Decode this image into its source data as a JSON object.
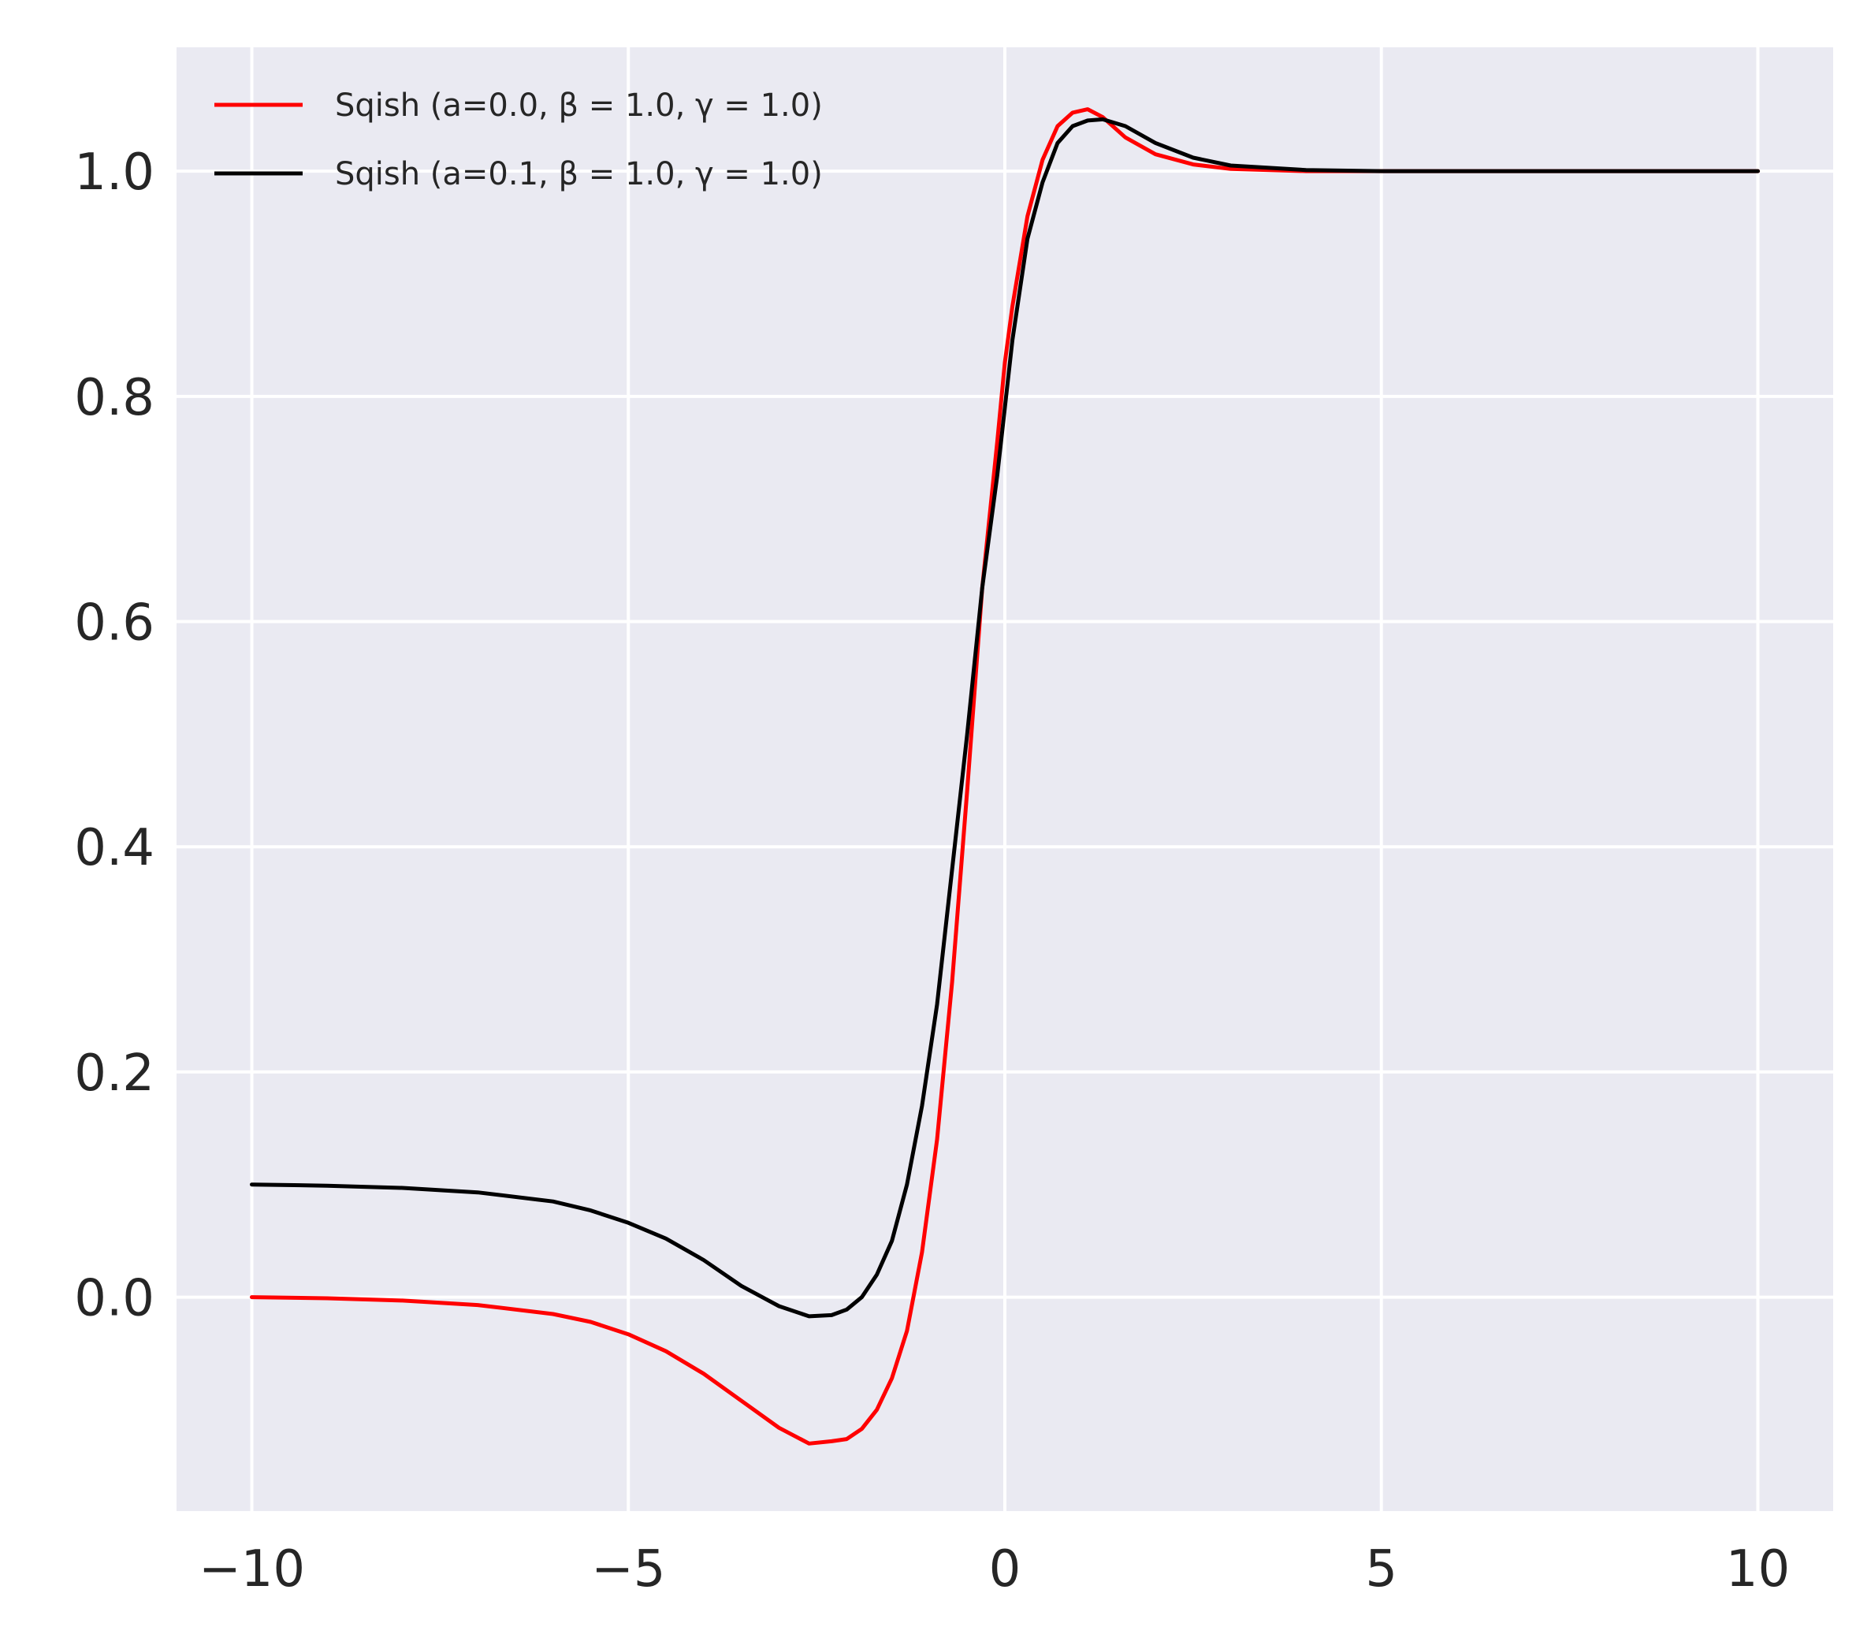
{
  "chart_data": {
    "type": "line",
    "title": "",
    "xlabel": "",
    "ylabel": "",
    "xlim": [
      -11,
      11
    ],
    "ylim": [
      -0.19,
      1.11
    ],
    "grid": true,
    "legend_position": "top-left",
    "x_ticks": [
      -10,
      -5,
      0,
      5,
      10
    ],
    "x_tick_labels": [
      "−10",
      "−5",
      "0",
      "5",
      "10"
    ],
    "y_ticks": [
      0.0,
      0.2,
      0.4,
      0.6,
      0.8,
      1.0
    ],
    "y_tick_labels": [
      "0.0",
      "0.2",
      "0.4",
      "0.6",
      "0.8",
      "1.0"
    ],
    "background_color": "#eaeaf2",
    "grid_color": "#ffffff",
    "series": [
      {
        "name": "Sqish (a=0.0, β = 1.0, γ = 1.0)",
        "color": "#ff0000",
        "x": [
          -10,
          -9,
          -8,
          -7,
          -6,
          -5.5,
          -5,
          -4.5,
          -4,
          -3.5,
          -3,
          -2.6,
          -2.3,
          -2.1,
          -1.9,
          -1.7,
          -1.5,
          -1.3,
          -1.1,
          -0.9,
          -0.7,
          -0.5,
          -0.3,
          -0.1,
          0,
          0.1,
          0.3,
          0.5,
          0.7,
          0.9,
          1.1,
          1.3,
          1.6,
          2,
          2.5,
          3,
          4,
          5,
          6,
          8,
          10
        ],
        "y": [
          0.0,
          -0.001,
          -0.003,
          -0.007,
          -0.015,
          -0.022,
          -0.033,
          -0.048,
          -0.068,
          -0.092,
          -0.116,
          -0.13,
          -0.128,
          -0.126,
          -0.117,
          -0.1,
          -0.072,
          -0.03,
          0.04,
          0.14,
          0.28,
          0.45,
          0.63,
          0.76,
          0.83,
          0.88,
          0.96,
          1.01,
          1.04,
          1.052,
          1.055,
          1.048,
          1.03,
          1.015,
          1.006,
          1.002,
          1.0,
          1.0,
          1.0,
          1.0,
          1.0
        ]
      },
      {
        "name": "Sqish (a=0.1, β = 1.0, γ = 1.0)",
        "color": "#000000",
        "x": [
          -10,
          -9,
          -8,
          -7,
          -6,
          -5.5,
          -5,
          -4.5,
          -4,
          -3.5,
          -3,
          -2.6,
          -2.3,
          -2.1,
          -1.9,
          -1.7,
          -1.5,
          -1.3,
          -1.1,
          -0.9,
          -0.7,
          -0.5,
          -0.3,
          -0.1,
          0,
          0.1,
          0.3,
          0.5,
          0.7,
          0.9,
          1.1,
          1.3,
          1.6,
          2,
          2.5,
          3,
          4,
          5,
          6,
          8,
          10
        ],
        "y": [
          0.1,
          0.099,
          0.097,
          0.093,
          0.085,
          0.077,
          0.066,
          0.052,
          0.033,
          0.01,
          -0.008,
          -0.017,
          -0.016,
          -0.011,
          0.0,
          0.02,
          0.05,
          0.1,
          0.17,
          0.26,
          0.38,
          0.5,
          0.63,
          0.73,
          0.79,
          0.85,
          0.94,
          0.99,
          1.025,
          1.04,
          1.045,
          1.046,
          1.04,
          1.025,
          1.012,
          1.005,
          1.001,
          1.0,
          1.0,
          1.0,
          1.0
        ]
      }
    ]
  }
}
